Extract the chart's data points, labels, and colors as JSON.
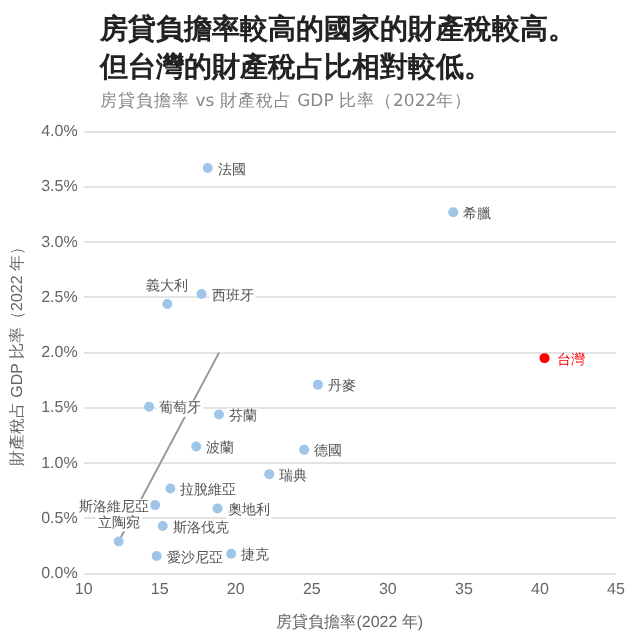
{
  "chart_data": {
    "type": "scatter",
    "title": "房貸負擔率較高的國家的財產稅較高。但台灣的財產稅占比相對較低。",
    "subtitle": "房貸負擔率 vs 財產稅占 GDP 比率（2022年）",
    "xlabel": "房貸負擔率(2022 年)",
    "ylabel": "財產稅占 GDP 比率（2022 年）",
    "xlim": [
      10,
      45
    ],
    "xticks": [
      10,
      15,
      20,
      25,
      30,
      35,
      40,
      45
    ],
    "ylim": [
      0,
      4
    ],
    "yticks": [
      {
        "value": 0,
        "label": "0.0%"
      },
      {
        "value": 0.5,
        "label": "0.5%"
      },
      {
        "value": 1,
        "label": "1.0%"
      },
      {
        "value": 1.5,
        "label": "1.5%"
      },
      {
        "value": 2,
        "label": "2.0%"
      },
      {
        "value": 2.5,
        "label": "2.5%"
      },
      {
        "value": 3,
        "label": "3.0%"
      },
      {
        "value": 3.5,
        "label": "3.5%"
      },
      {
        "value": 4,
        "label": "4.0%"
      }
    ],
    "grid": "y",
    "legend": false,
    "marker": "circle",
    "series": [
      {
        "type": "line",
        "color": "#999999",
        "x": [
          12.3,
          18.9
        ],
        "values": [
          0.29,
          2.0
        ],
        "marker": "none"
      },
      {
        "color": "#9fc5e8",
        "x": [
          18.15,
          34.3,
          17.75,
          15.5,
          25.4,
          14.3,
          18.9,
          17.4,
          24.5,
          22.2,
          15.7,
          14.7,
          18.8,
          15.2,
          12.3,
          14.8,
          19.7
        ],
        "values": [
          3.67,
          3.27,
          2.53,
          2.44,
          1.71,
          1.51,
          1.44,
          1.15,
          1.12,
          0.9,
          0.77,
          0.62,
          0.59,
          0.43,
          0.29,
          0.16,
          0.18
        ]
      },
      {
        "name": "台灣",
        "color": "#ff0000",
        "x": [
          40.3
        ],
        "values": [
          1.95
        ]
      }
    ],
    "annotations": [
      {
        "text": "法國",
        "x": 18.15,
        "y": 3.67
      },
      {
        "text": "希臘",
        "x": 34.3,
        "y": 3.27
      },
      {
        "text": "西班牙",
        "x": 17.75,
        "y": 2.53
      },
      {
        "text": "義大利",
        "x": 15.5,
        "y": 2.44
      },
      {
        "text": "丹麥",
        "x": 25.4,
        "y": 1.71
      },
      {
        "text": "葡萄牙",
        "x": 14.3,
        "y": 1.51
      },
      {
        "text": "芬蘭",
        "x": 18.9,
        "y": 1.44
      },
      {
        "text": "波蘭",
        "x": 17.4,
        "y": 1.15
      },
      {
        "text": "德國",
        "x": 24.5,
        "y": 1.12
      },
      {
        "text": "瑞典",
        "x": 22.2,
        "y": 0.9
      },
      {
        "text": "拉脫維亞",
        "x": 15.7,
        "y": 0.77
      },
      {
        "text": "斯洛維尼亞",
        "x": 14.7,
        "y": 0.62
      },
      {
        "text": "奧地利",
        "x": 18.8,
        "y": 0.59
      },
      {
        "text": "斯洛伐克",
        "x": 15.2,
        "y": 0.43
      },
      {
        "text": "立陶宛",
        "x": 12.3,
        "y": 0.29
      },
      {
        "text": "愛沙尼亞",
        "x": 14.8,
        "y": 0.16
      },
      {
        "text": "捷克",
        "x": 19.7,
        "y": 0.18
      }
    ]
  }
}
